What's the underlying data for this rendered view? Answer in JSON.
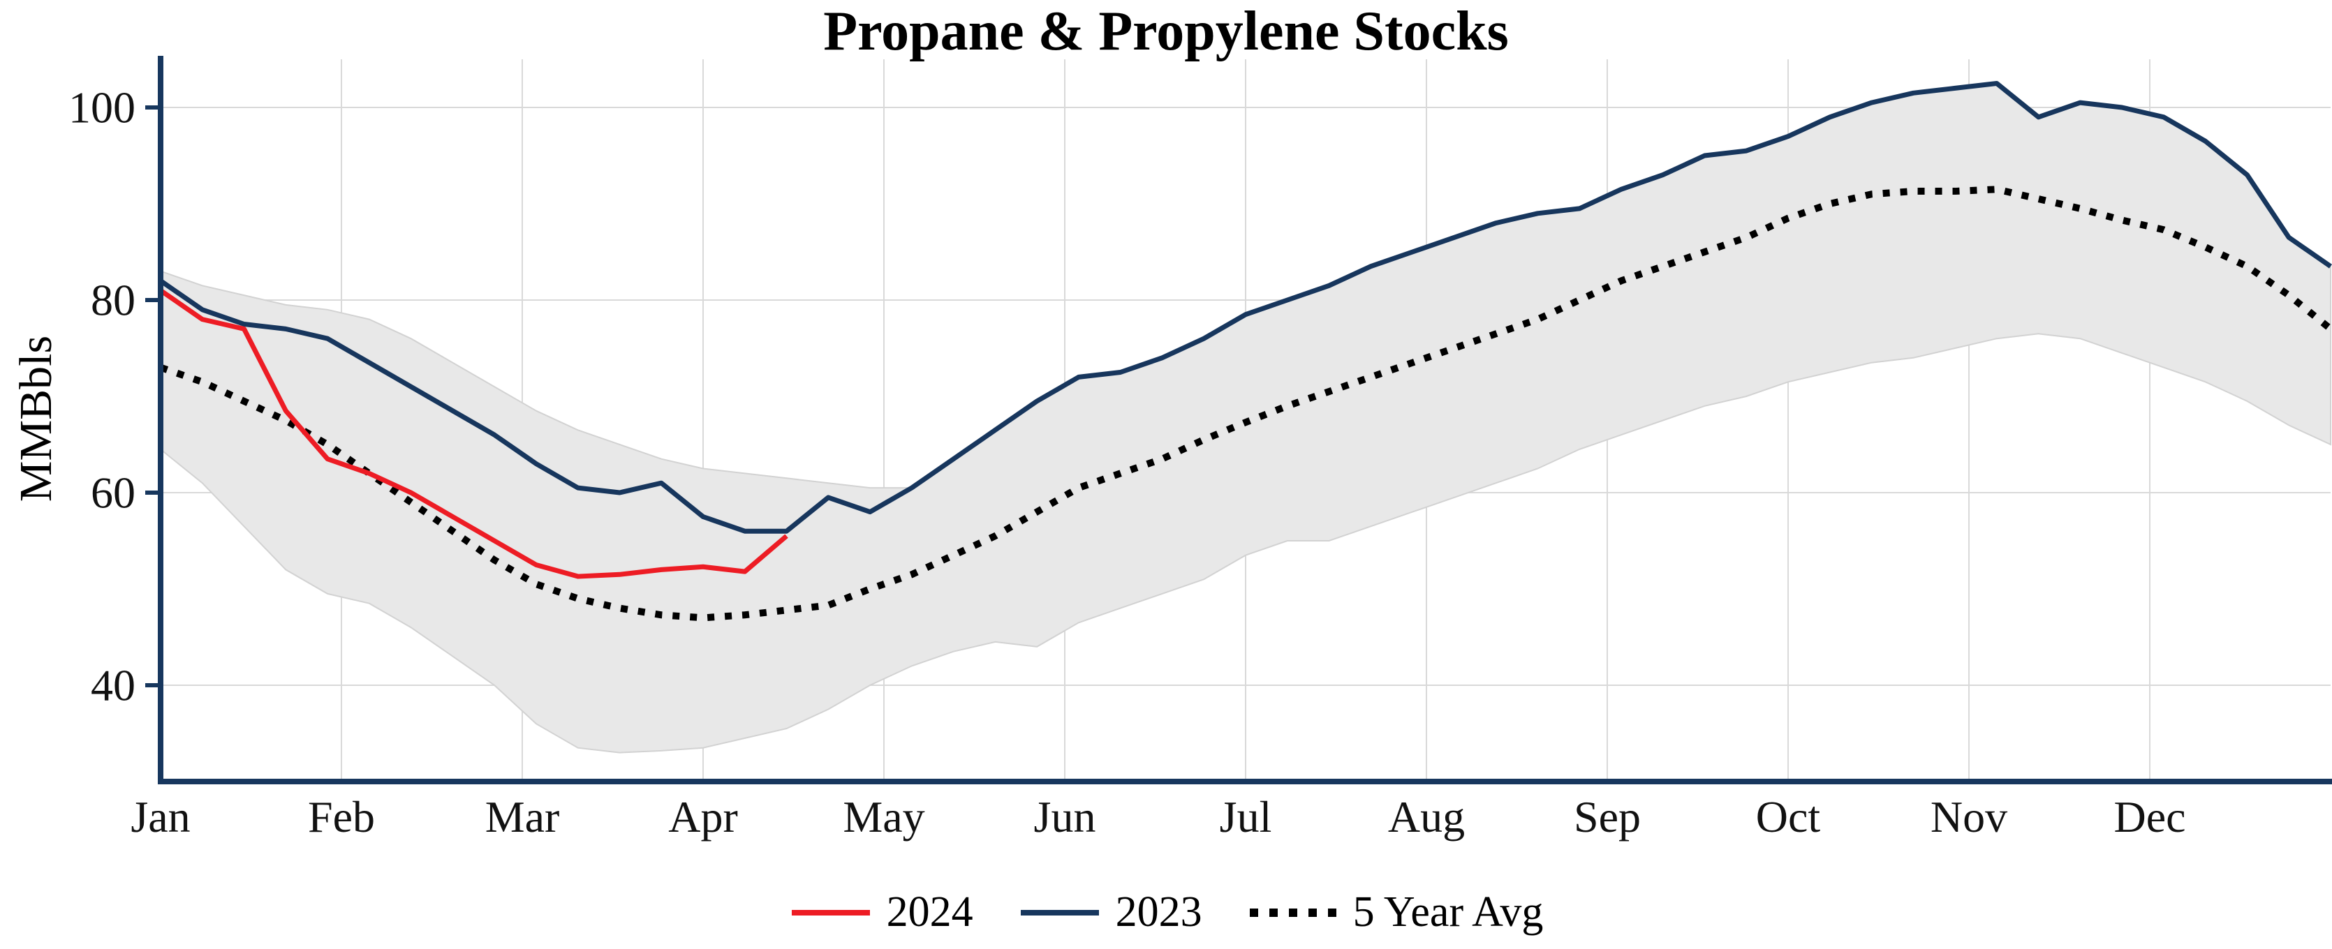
{
  "chart_data": {
    "type": "line",
    "title": "Propane & Propylene Stocks",
    "ylabel": "MMBbls",
    "x_unit": "week",
    "x_range": [
      0,
      52
    ],
    "ylim": [
      30,
      105
    ],
    "yticks": [
      40,
      60,
      80,
      100
    ],
    "x_tick_labels": [
      "Jan",
      "Feb",
      "Mar",
      "Apr",
      "May",
      "Jun",
      "Jul",
      "Aug",
      "Sep",
      "Oct",
      "Nov",
      "Dec"
    ],
    "grid": true,
    "legend_position": "bottom",
    "colors": {
      "axis": "#17375e",
      "grid": "#d9d9d9",
      "band_fill": "#e8e8e8",
      "band_edge": "#d2d2d2",
      "red": "#ed1c24",
      "navy": "#17365d",
      "black": "#000000"
    },
    "band": {
      "name": "5-year-range",
      "lower": [
        64.5,
        61,
        56.5,
        52,
        49.5,
        48.5,
        46,
        43,
        40,
        36,
        33.5,
        33,
        33.2,
        33.5,
        34.5,
        35.5,
        37.5,
        40,
        42,
        43.5,
        44.5,
        44,
        46.5,
        48,
        49.5,
        51,
        53.5,
        55,
        55,
        56.5,
        58,
        59.5,
        61,
        62.5,
        64.5,
        66,
        67.5,
        69,
        70,
        71.5,
        72.5,
        73.5,
        74,
        75,
        76,
        76.5,
        76,
        74.5,
        73,
        71.5,
        69.5,
        67,
        65
      ],
      "upper": [
        83,
        81.5,
        80.5,
        79.5,
        79,
        78,
        76,
        73.5,
        71,
        68.5,
        66.5,
        65,
        63.5,
        62.5,
        62,
        61.5,
        61,
        60.5,
        60.5,
        63.5,
        66.5,
        69.5,
        72,
        72.5,
        74,
        76,
        78.5,
        80,
        81.5,
        83.5,
        85,
        86.5,
        88,
        89,
        89.5,
        91.5,
        93,
        95,
        95.5,
        97,
        99,
        100.5,
        101.5,
        102,
        102.5,
        99,
        100.5,
        100,
        99,
        96.5,
        93,
        86.5,
        83.5
      ]
    },
    "series": [
      {
        "name": "2024",
        "style": "solid",
        "color": "#ed1c24",
        "width": 7,
        "values": [
          81,
          78,
          77,
          68.5,
          63.5,
          62,
          60,
          57.5,
          55,
          52.5,
          51.3,
          51.5,
          52,
          52.3,
          51.8,
          55.5
        ]
      },
      {
        "name": "2023",
        "style": "solid",
        "color": "#17365d",
        "width": 7,
        "values": [
          82,
          79,
          77.5,
          77,
          76,
          73.5,
          71,
          68.5,
          66,
          63,
          60.5,
          60,
          61,
          57.5,
          56,
          56,
          59.5,
          58,
          60.5,
          63.5,
          66.5,
          69.5,
          72,
          72.5,
          74,
          76,
          78.5,
          80,
          81.5,
          83.5,
          85,
          86.5,
          88,
          89,
          89.5,
          91.5,
          93,
          95,
          95.5,
          97,
          99,
          100.5,
          101.5,
          102,
          102.5,
          99,
          100.5,
          100,
          99,
          96.5,
          93,
          86.5,
          83.5
        ]
      },
      {
        "name": "5 Year Avg",
        "style": "dotted",
        "color": "#000000",
        "width": 10,
        "values": [
          73,
          71.5,
          69.5,
          67.5,
          65,
          62,
          59,
          56,
          53,
          50.5,
          49,
          48,
          47.3,
          47,
          47.3,
          47.8,
          48.3,
          50,
          51.5,
          53.5,
          55.5,
          58,
          60.5,
          62,
          63.5,
          65.5,
          67.3,
          69,
          70.5,
          72,
          73.5,
          75,
          76.5,
          78,
          80,
          82,
          83.5,
          85,
          86.5,
          88.5,
          90,
          91,
          91.3,
          91.3,
          91.5,
          90.5,
          89.5,
          88.3,
          87.3,
          85.5,
          83.5,
          80.5,
          77
        ]
      }
    ]
  }
}
